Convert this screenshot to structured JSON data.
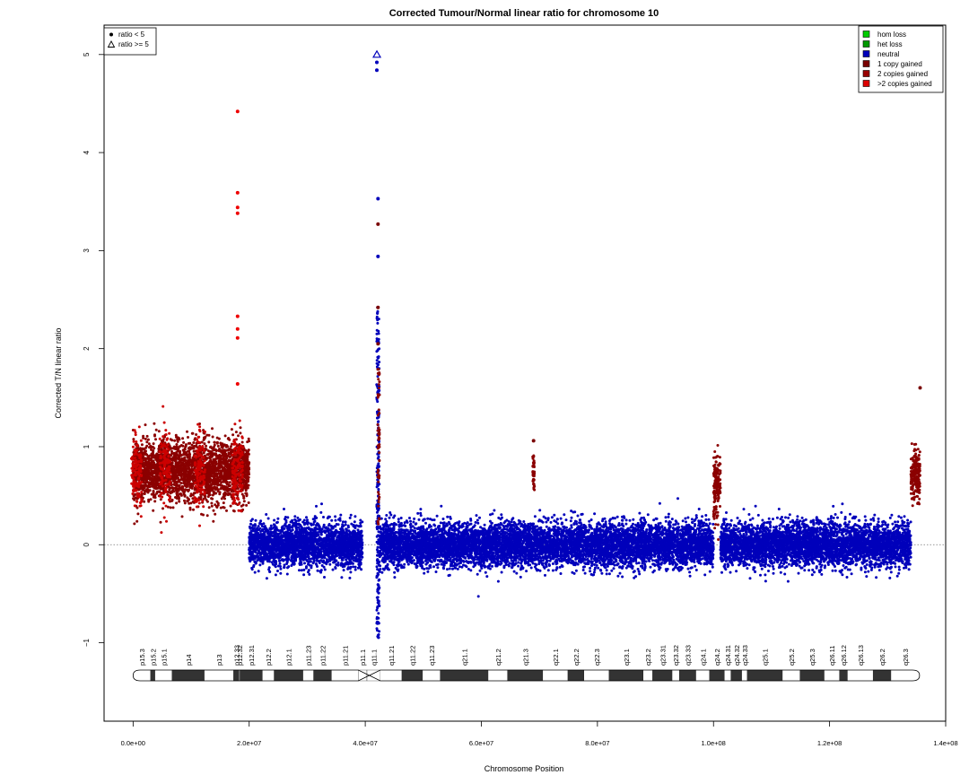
{
  "chart_data": {
    "type": "scatter",
    "title": "Corrected Tumour/Normal linear ratio for chromosome  10",
    "xlabel": "Chromosome Position",
    "ylabel": "Corrected T/N linear ratio",
    "xlim": [
      -5000000,
      140000000
    ],
    "ylim": [
      -1.8,
      5.3
    ],
    "x_ticks": [
      0,
      20000000,
      40000000,
      60000000,
      80000000,
      100000000,
      120000000,
      140000000
    ],
    "x_tick_labels": [
      "0.0e+00",
      "2.0e+07",
      "4.0e+07",
      "6.0e+07",
      "8.0e+07",
      "1.0e+08",
      "1.2e+08",
      "1.4e+08"
    ],
    "y_ticks": [
      -1,
      0,
      1,
      2,
      3,
      4,
      5
    ],
    "y_tick_labels": [
      "−1",
      "0",
      "1",
      "2",
      "3",
      "4",
      "5"
    ],
    "reference_line_y": 0,
    "shape_legend": {
      "placement": "top-left",
      "entries": [
        {
          "label": "ratio < 5",
          "marker": "dot"
        },
        {
          "label": "ratio >= 5",
          "marker": "triangle"
        }
      ]
    },
    "legend": {
      "placement": "top-right",
      "entries": [
        {
          "label": "hom loss",
          "color": "#00cc00"
        },
        {
          "label": "het loss",
          "color": "#009900"
        },
        {
          "label": "neutral",
          "color": "#0000bb"
        },
        {
          "label": "1 copy gained",
          "color": "#7a0000"
        },
        {
          "label": "2 copies gained",
          "color": "#990000"
        },
        {
          "label": ">2 copies gained",
          "color": "#dd0000"
        }
      ]
    },
    "segments": [
      {
        "state": "1 copy gained",
        "color": "#8b0000",
        "x_start": 0,
        "x_end": 20000000,
        "mean": 0.75,
        "spread": 0.28
      },
      {
        "state": "neutral",
        "color": "#0000bb",
        "x_start": 20000000,
        "x_end": 39500000,
        "mean": 0.0,
        "spread": 0.2
      },
      {
        "state": "neutral",
        "color": "#0000bb",
        "x_start": 42500000,
        "x_end": 100000000,
        "mean": 0.0,
        "spread": 0.2
      },
      {
        "state": "1 copy gained",
        "color": "#8b0000",
        "x_start": 100000000,
        "x_end": 101200000,
        "mean": 0.6,
        "spread": 0.3
      },
      {
        "state": "neutral",
        "color": "#0000bb",
        "x_start": 101200000,
        "x_end": 134000000,
        "mean": 0.0,
        "spread": 0.2
      },
      {
        "state": "1 copy gained",
        "color": "#8b0000",
        "x_start": 134000000,
        "x_end": 135600000,
        "mean": 0.7,
        "spread": 0.25
      }
    ],
    "highlighted_points": [
      {
        "x": 18000000,
        "y": 4.42,
        "state": ">2 copies gained"
      },
      {
        "x": 18000000,
        "y": 3.59,
        "state": ">2 copies gained"
      },
      {
        "x": 18000000,
        "y": 3.44,
        "state": ">2 copies gained"
      },
      {
        "x": 18000000,
        "y": 3.38,
        "state": ">2 copies gained"
      },
      {
        "x": 18000000,
        "y": 2.33,
        "state": ">2 copies gained"
      },
      {
        "x": 18000000,
        "y": 2.2,
        "state": ">2 copies gained"
      },
      {
        "x": 18000000,
        "y": 2.11,
        "state": ">2 copies gained"
      },
      {
        "x": 18000000,
        "y": 1.64,
        "state": ">2 copies gained"
      },
      {
        "x": 42000000,
        "y": 5.0,
        "state": "neutral",
        "marker": "triangle"
      },
      {
        "x": 42000000,
        "y": 4.92,
        "state": "neutral"
      },
      {
        "x": 42000000,
        "y": 4.84,
        "state": "neutral"
      },
      {
        "x": 42200000,
        "y": 3.53,
        "state": "neutral"
      },
      {
        "x": 42200000,
        "y": 3.27,
        "state": "1 copy gained"
      },
      {
        "x": 42200000,
        "y": 2.94,
        "state": "neutral"
      },
      {
        "x": 42200000,
        "y": 2.42,
        "state": "1 copy gained"
      },
      {
        "x": 42200000,
        "y": 2.05,
        "state": "1 copy gained"
      },
      {
        "x": 69000000,
        "y": 1.06,
        "state": "1 copy gained"
      },
      {
        "x": 135600000,
        "y": 1.6,
        "state": "1 copy gained"
      }
    ],
    "cytobands": [
      {
        "name": "p15.3",
        "start": 0,
        "end": 3000000,
        "stain": "gneg"
      },
      {
        "name": "p15.2",
        "start": 3000000,
        "end": 3800000,
        "stain": "gpos"
      },
      {
        "name": "p15.1",
        "start": 3800000,
        "end": 6700000,
        "stain": "gneg"
      },
      {
        "name": "p14",
        "start": 6700000,
        "end": 12300000,
        "stain": "gpos"
      },
      {
        "name": "p13",
        "start": 12300000,
        "end": 17300000,
        "stain": "gneg"
      },
      {
        "name": "p12.33",
        "start": 17300000,
        "end": 18300000,
        "stain": "gpos"
      },
      {
        "name": "p12.32",
        "start": 18300000,
        "end": 18400000,
        "stain": "gneg"
      },
      {
        "name": "p12.31",
        "start": 18400000,
        "end": 22300000,
        "stain": "gpos"
      },
      {
        "name": "p12.2",
        "start": 22300000,
        "end": 24300000,
        "stain": "gneg"
      },
      {
        "name": "p12.1",
        "start": 24300000,
        "end": 29300000,
        "stain": "gpos"
      },
      {
        "name": "p11.23",
        "start": 29300000,
        "end": 31100000,
        "stain": "gneg"
      },
      {
        "name": "p11.22",
        "start": 31100000,
        "end": 34200000,
        "stain": "gpos"
      },
      {
        "name": "p11.21",
        "start": 34200000,
        "end": 38800000,
        "stain": "gneg"
      },
      {
        "name": "p11.1",
        "start": 38800000,
        "end": 40300000,
        "stain": "acen"
      },
      {
        "name": "q11.1",
        "start": 40300000,
        "end": 42600000,
        "stain": "acen"
      },
      {
        "name": "q11.21",
        "start": 42600000,
        "end": 46300000,
        "stain": "gneg"
      },
      {
        "name": "q11.22",
        "start": 46300000,
        "end": 49900000,
        "stain": "gpos"
      },
      {
        "name": "q11.23",
        "start": 49900000,
        "end": 52900000,
        "stain": "gneg"
      },
      {
        "name": "q21.1",
        "start": 52900000,
        "end": 61200000,
        "stain": "gpos"
      },
      {
        "name": "q21.2",
        "start": 61200000,
        "end": 64500000,
        "stain": "gneg"
      },
      {
        "name": "q21.3",
        "start": 64500000,
        "end": 70600000,
        "stain": "gpos"
      },
      {
        "name": "q22.1",
        "start": 70600000,
        "end": 74900000,
        "stain": "gneg"
      },
      {
        "name": "q22.2",
        "start": 74900000,
        "end": 77700000,
        "stain": "gpos"
      },
      {
        "name": "q22.3",
        "start": 77700000,
        "end": 82000000,
        "stain": "gneg"
      },
      {
        "name": "q23.1",
        "start": 82000000,
        "end": 87900000,
        "stain": "gpos"
      },
      {
        "name": "q23.2",
        "start": 87900000,
        "end": 89500000,
        "stain": "gneg"
      },
      {
        "name": "q23.31",
        "start": 89500000,
        "end": 92900000,
        "stain": "gpos"
      },
      {
        "name": "q23.32",
        "start": 92900000,
        "end": 94100000,
        "stain": "gneg"
      },
      {
        "name": "q23.33",
        "start": 94100000,
        "end": 97000000,
        "stain": "gpos"
      },
      {
        "name": "q24.1",
        "start": 97000000,
        "end": 99300000,
        "stain": "gneg"
      },
      {
        "name": "q24.2",
        "start": 99300000,
        "end": 101900000,
        "stain": "gpos"
      },
      {
        "name": "q24.31",
        "start": 101900000,
        "end": 103000000,
        "stain": "gneg"
      },
      {
        "name": "q24.32",
        "start": 103000000,
        "end": 104900000,
        "stain": "gpos"
      },
      {
        "name": "q24.33",
        "start": 104900000,
        "end": 105800000,
        "stain": "gneg"
      },
      {
        "name": "q25.1",
        "start": 105800000,
        "end": 111900000,
        "stain": "gpos"
      },
      {
        "name": "q25.2",
        "start": 111900000,
        "end": 114900000,
        "stain": "gneg"
      },
      {
        "name": "q25.3",
        "start": 114900000,
        "end": 119100000,
        "stain": "gpos"
      },
      {
        "name": "q26.11",
        "start": 119100000,
        "end": 121700000,
        "stain": "gneg"
      },
      {
        "name": "q26.12",
        "start": 121700000,
        "end": 123100000,
        "stain": "gpos"
      },
      {
        "name": "q26.13",
        "start": 123100000,
        "end": 127500000,
        "stain": "gneg"
      },
      {
        "name": "q26.2",
        "start": 127500000,
        "end": 130600000,
        "stain": "gpos"
      },
      {
        "name": "q26.3",
        "start": 130600000,
        "end": 135500000,
        "stain": "gneg"
      }
    ],
    "grid": false
  }
}
